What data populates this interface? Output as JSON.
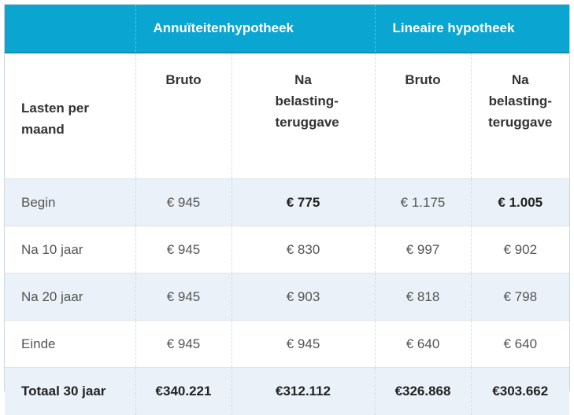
{
  "groups": {
    "annuity": "Annuïteitenhypotheek",
    "linear": "Lineaire hypotheek"
  },
  "columns": {
    "row_header": "Lasten per maand",
    "annuity_gross": "Bruto",
    "annuity_net": "Na belasting-teruggave",
    "linear_gross": "Bruto",
    "linear_net": "Na belasting-teruggave"
  },
  "rows": [
    {
      "label": "Begin",
      "annuity_gross": "€ 945",
      "annuity_net": "€ 775",
      "linear_gross": "€ 1.175",
      "linear_net": "€ 1.005"
    },
    {
      "label": "Na 10 jaar",
      "annuity_gross": "€ 945",
      "annuity_net": "€ 830",
      "linear_gross": "€ 997",
      "linear_net": "€ 902"
    },
    {
      "label": "Na 20 jaar",
      "annuity_gross": "€ 945",
      "annuity_net": "€ 903",
      "linear_gross": "€ 818",
      "linear_net": "€ 798"
    },
    {
      "label": "Einde",
      "annuity_gross": "€ 945",
      "annuity_net": "€ 945",
      "linear_gross": "€ 640",
      "linear_net": "€ 640"
    }
  ],
  "total": {
    "label": "Totaal 30 jaar",
    "annuity_gross": "€340.221",
    "annuity_net": "€312.112",
    "linear_gross": "€326.868",
    "linear_net": "€303.662"
  },
  "colors": {
    "header_bg": "#0aa5d1",
    "shade_bg": "#eaf1f8"
  }
}
